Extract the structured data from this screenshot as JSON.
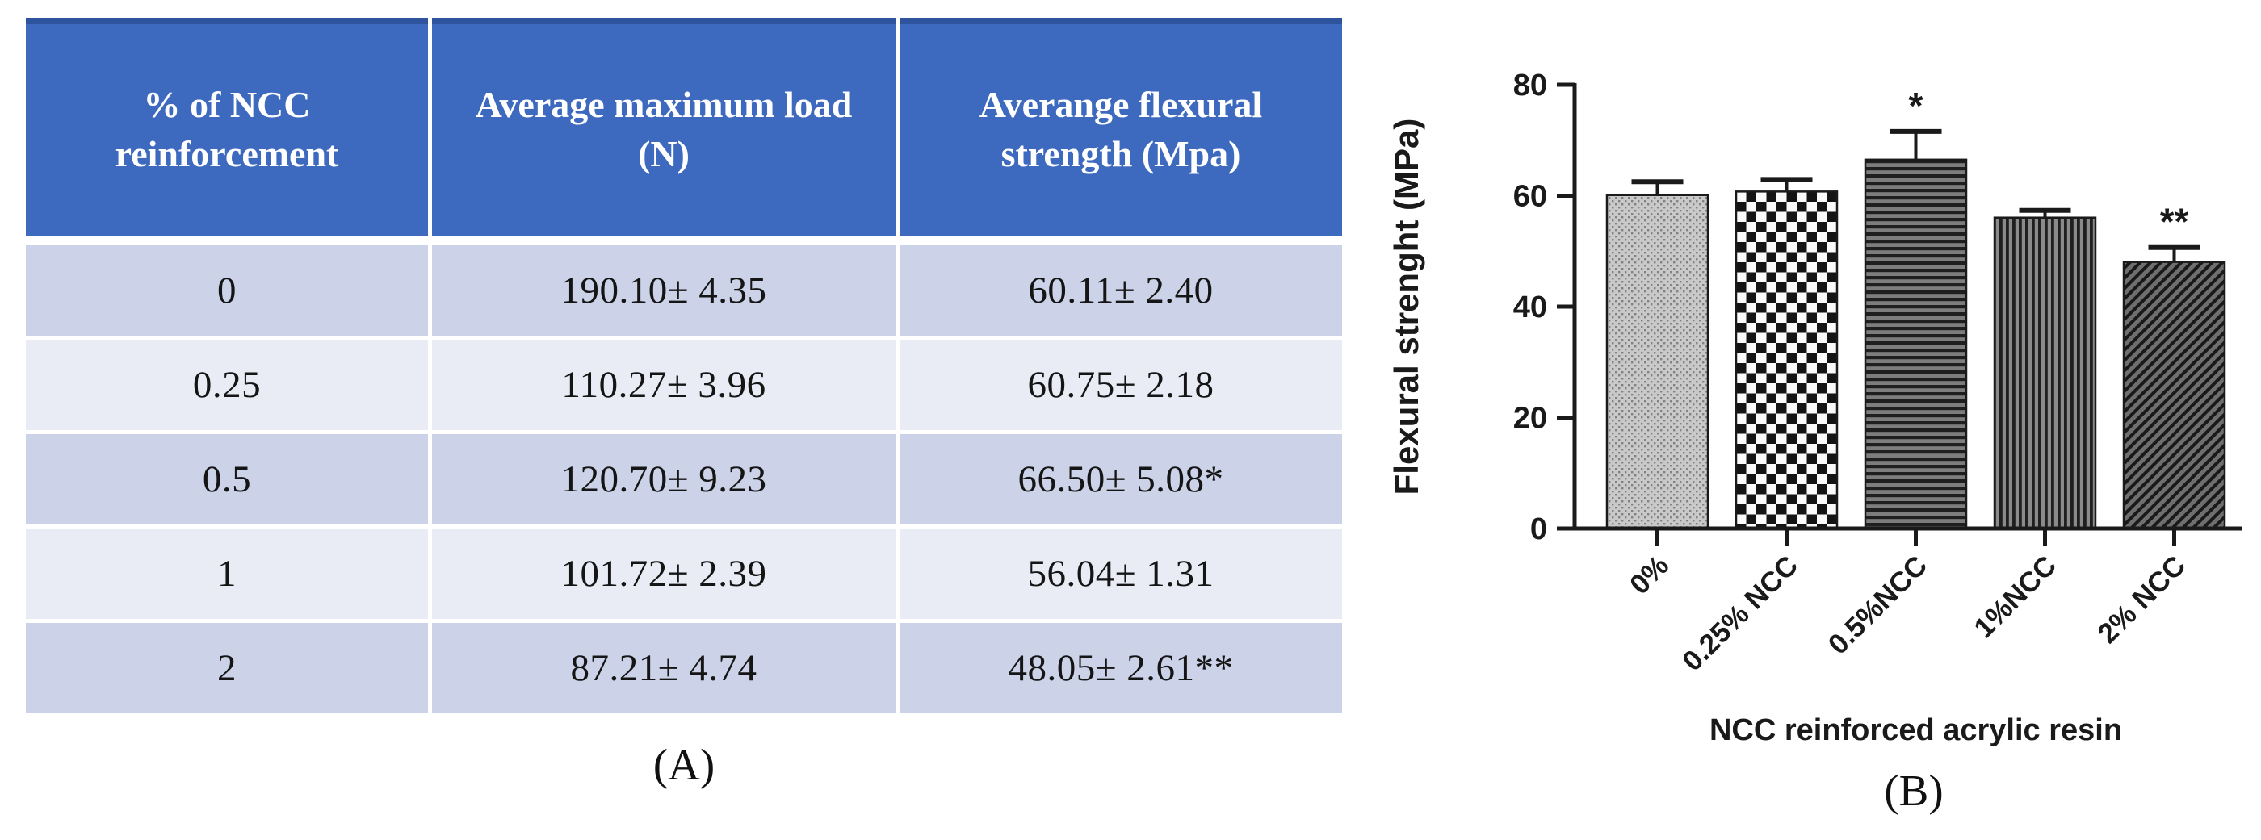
{
  "figure": {
    "panel_a": {
      "caption": "(A)",
      "table": {
        "headers": [
          "% of NCC reinforcement",
          "Average maximum load (N)",
          "Averange flexural strength (Mpa)"
        ],
        "rows": [
          {
            "cells": [
              "0",
              "190.10± 4.35",
              "60.11± 2.40"
            ]
          },
          {
            "cells": [
              "0.25",
              "110.27± 3.96",
              "60.75± 2.18"
            ]
          },
          {
            "cells": [
              "0.5",
              "120.70± 9.23",
              "66.50± 5.08*"
            ]
          },
          {
            "cells": [
              "1",
              "101.72± 2.39",
              "56.04± 1.31"
            ]
          },
          {
            "cells": [
              "2",
              "87.21± 4.74",
              "48.05± 2.61**"
            ]
          }
        ]
      }
    },
    "panel_b": {
      "caption": "(B)"
    }
  },
  "chart_data": {
    "type": "bar",
    "title": "",
    "categories": [
      "0%",
      "0.25% NCC",
      "0.5%NCC",
      "1%NCC",
      "2% NCC"
    ],
    "values": [
      60.11,
      60.75,
      66.5,
      56.04,
      48.05
    ],
    "errors": [
      2.4,
      2.18,
      5.08,
      1.31,
      2.61
    ],
    "annotations": [
      "",
      "",
      "*",
      "",
      "**"
    ],
    "xlabel": "NCC reinforced acrylic resin",
    "ylabel": "Flexural strenght (MPa)",
    "ylim": [
      0,
      80
    ],
    "yticks": [
      0,
      20,
      40,
      60,
      80
    ],
    "grid": false,
    "legend": "none",
    "bar_patterns": [
      "stipple",
      "checker",
      "horizontal-lines",
      "vertical-lines",
      "diagonal-lines"
    ]
  },
  "colors": {
    "table_header_bg": "#3d6abe",
    "table_header_top_edge": "#2e549d",
    "table_header_text": "#ffffff",
    "row_dark": "#ccd3e8",
    "row_light": "#e9ebf5",
    "chart_ink": "#1a1a1a",
    "bar_stipple_bg": "#c9c9c9",
    "bar_dark_bg": "#7d7d7d"
  }
}
